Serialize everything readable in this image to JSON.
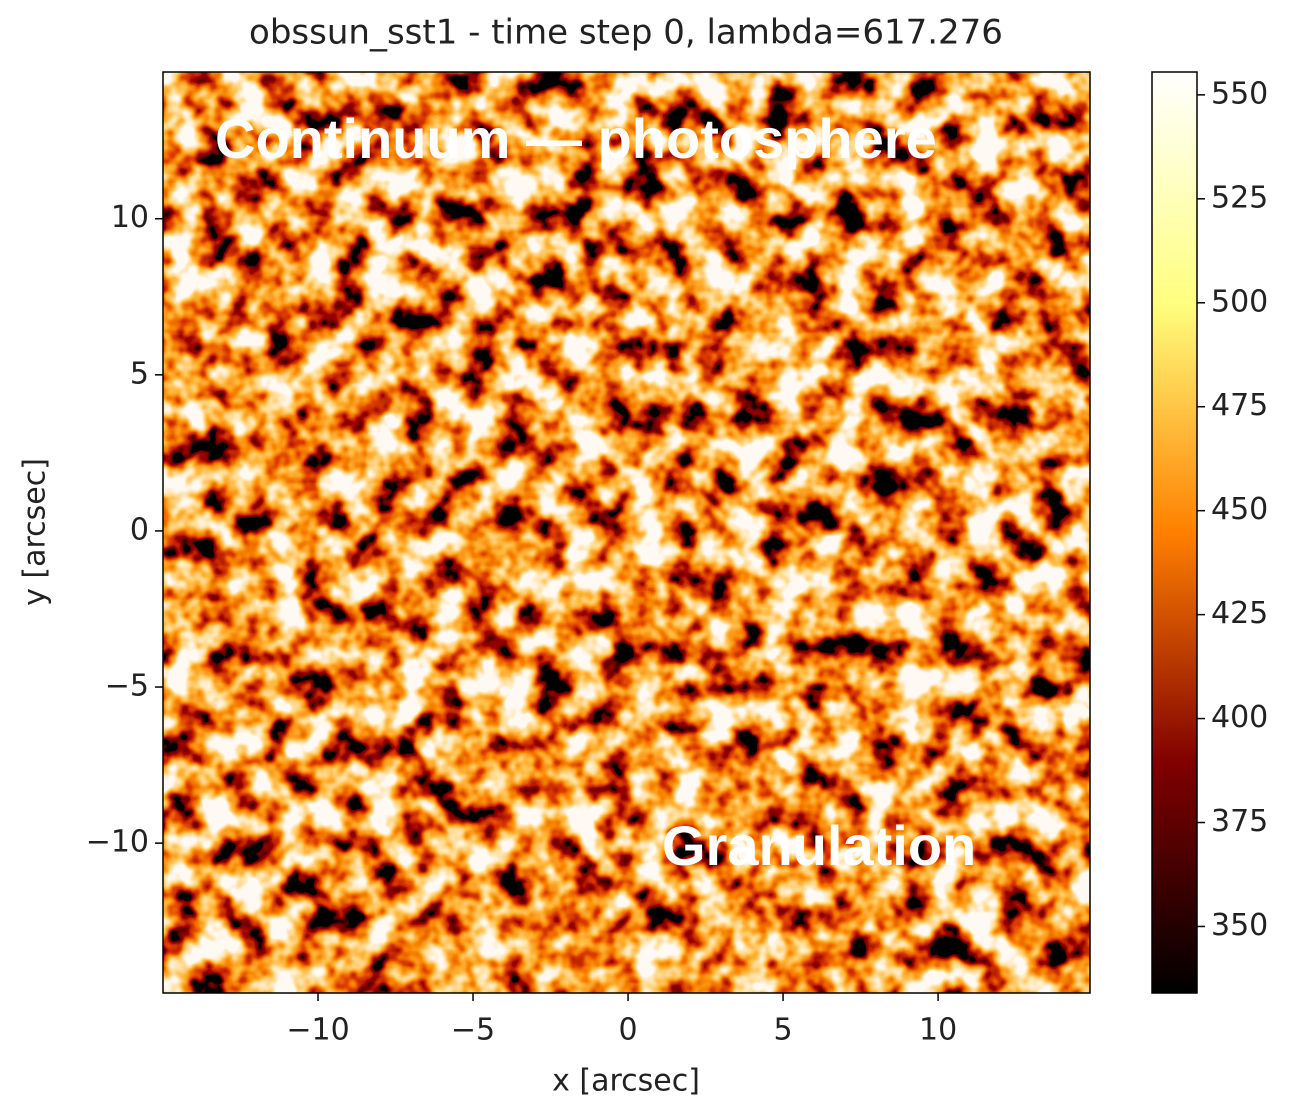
{
  "chart_data": {
    "type": "image",
    "title": "obssun_sst1 - time step 0, lambda=617.276",
    "x_label": "x [arcsec]",
    "y_label": "y [arcsec]",
    "xlim": [
      -15,
      14.9
    ],
    "ylim": [
      -14.8,
      14.7
    ],
    "xticks": [
      {
        "value": -10,
        "label": "−10"
      },
      {
        "value": -5,
        "label": "−5"
      },
      0,
      5,
      10
    ],
    "yticks": [
      {
        "value": -10,
        "label": "−10"
      },
      {
        "value": -5,
        "label": "−5"
      },
      0,
      5,
      10
    ],
    "colormap": "afmhot",
    "clim": [
      334,
      555.5
    ],
    "cticks": [
      350,
      375,
      400,
      425,
      450,
      475,
      500,
      525,
      550
    ],
    "annotations": [
      "Continuum — photosphere",
      "Granulation"
    ]
  }
}
